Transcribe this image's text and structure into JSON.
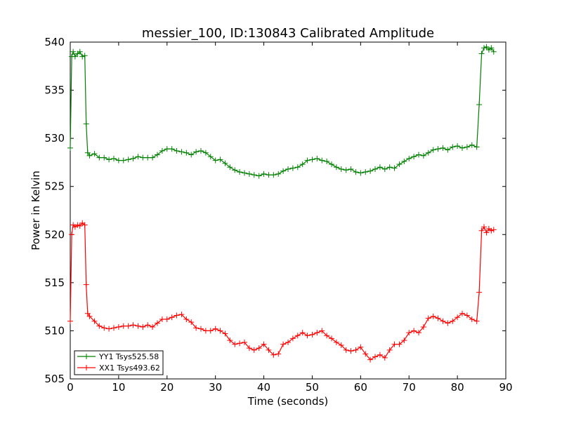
{
  "chart_data": {
    "type": "line",
    "title": "messier_100, ID:130843 Calibrated Amplitude",
    "xlabel": "Time (seconds)",
    "ylabel": "Power in Kelvin",
    "xlim": [
      0,
      90
    ],
    "ylim": [
      505,
      540
    ],
    "x_ticks": [
      0,
      10,
      20,
      30,
      40,
      50,
      60,
      70,
      80,
      90
    ],
    "y_ticks": [
      505,
      510,
      515,
      520,
      525,
      530,
      535,
      540
    ],
    "grid": false,
    "legend_position": "lower-left",
    "marker": "+",
    "series": [
      {
        "name": "YY1 Tsys525.58",
        "color": "#008000",
        "points": [
          [
            0,
            529
          ],
          [
            0.3,
            538.5
          ],
          [
            0.6,
            539
          ],
          [
            1,
            538.5
          ],
          [
            1.5,
            538.8
          ],
          [
            2,
            539
          ],
          [
            2.5,
            538.5
          ],
          [
            3,
            538.6
          ],
          [
            3.3,
            531.5
          ],
          [
            3.6,
            528.5
          ],
          [
            4,
            528.2
          ],
          [
            5,
            528.4
          ],
          [
            6,
            528
          ],
          [
            7,
            528
          ],
          [
            8,
            527.8
          ],
          [
            9,
            527.9
          ],
          [
            10,
            527.7
          ],
          [
            11,
            527.7
          ],
          [
            12,
            527.8
          ],
          [
            13,
            527.9
          ],
          [
            14,
            528.1
          ],
          [
            15,
            528
          ],
          [
            16,
            528
          ],
          [
            17,
            528
          ],
          [
            18,
            528.3
          ],
          [
            19,
            528.7
          ],
          [
            20,
            528.9
          ],
          [
            21,
            528.9
          ],
          [
            22,
            528.7
          ],
          [
            23,
            528.6
          ],
          [
            24,
            528.5
          ],
          [
            25,
            528.3
          ],
          [
            26,
            528.6
          ],
          [
            27,
            528.7
          ],
          [
            28,
            528.5
          ],
          [
            29,
            528.1
          ],
          [
            30,
            527.7
          ],
          [
            31,
            527.8
          ],
          [
            32,
            527.4
          ],
          [
            33,
            527
          ],
          [
            34,
            526.7
          ],
          [
            35,
            526.5
          ],
          [
            36,
            526.4
          ],
          [
            37,
            526.3
          ],
          [
            38,
            526.2
          ],
          [
            39,
            526.1
          ],
          [
            40,
            526.3
          ],
          [
            41,
            526.2
          ],
          [
            42,
            526.2
          ],
          [
            43,
            526.3
          ],
          [
            44,
            526.6
          ],
          [
            45,
            526.8
          ],
          [
            46,
            526.9
          ],
          [
            47,
            527
          ],
          [
            48,
            527.3
          ],
          [
            49,
            527.7
          ],
          [
            50,
            527.8
          ],
          [
            51,
            527.9
          ],
          [
            52,
            527.7
          ],
          [
            53,
            527.6
          ],
          [
            54,
            527.3
          ],
          [
            55,
            527
          ],
          [
            56,
            526.8
          ],
          [
            57,
            526.7
          ],
          [
            58,
            526.8
          ],
          [
            59,
            526.5
          ],
          [
            60,
            526.4
          ],
          [
            61,
            526.5
          ],
          [
            62,
            526.6
          ],
          [
            63,
            526.8
          ],
          [
            64,
            527
          ],
          [
            65,
            526.8
          ],
          [
            66,
            527
          ],
          [
            67,
            526.9
          ],
          [
            68,
            527.3
          ],
          [
            69,
            527.6
          ],
          [
            70,
            527.9
          ],
          [
            71,
            528.1
          ],
          [
            72,
            528.3
          ],
          [
            73,
            528.2
          ],
          [
            74,
            528.5
          ],
          [
            75,
            528.8
          ],
          [
            76,
            528.9
          ],
          [
            77,
            529
          ],
          [
            78,
            528.8
          ],
          [
            79,
            529.1
          ],
          [
            80,
            529.2
          ],
          [
            81,
            529
          ],
          [
            82,
            529.1
          ],
          [
            83,
            529.3
          ],
          [
            84,
            529.1
          ],
          [
            84.5,
            533.5
          ],
          [
            85,
            538.8
          ],
          [
            85.5,
            539.4
          ],
          [
            86,
            539.5
          ],
          [
            86.5,
            539.2
          ],
          [
            87,
            539.4
          ],
          [
            87.5,
            539
          ]
        ]
      },
      {
        "name": "XX1 Tsys493.62",
        "color": "#ff0000",
        "points": [
          [
            0,
            511
          ],
          [
            0.3,
            520
          ],
          [
            0.6,
            521
          ],
          [
            1,
            520.8
          ],
          [
            1.5,
            521
          ],
          [
            2,
            520.9
          ],
          [
            2.5,
            521.2
          ],
          [
            3,
            521
          ],
          [
            3.3,
            514.8
          ],
          [
            3.6,
            511.8
          ],
          [
            4,
            511.5
          ],
          [
            5,
            511
          ],
          [
            6,
            510.5
          ],
          [
            7,
            510.3
          ],
          [
            8,
            510.2
          ],
          [
            9,
            510.3
          ],
          [
            10,
            510.4
          ],
          [
            11,
            510.5
          ],
          [
            12,
            510.5
          ],
          [
            13,
            510.6
          ],
          [
            14,
            510.5
          ],
          [
            15,
            510.4
          ],
          [
            16,
            510.6
          ],
          [
            17,
            510.4
          ],
          [
            18,
            510.8
          ],
          [
            19,
            511.2
          ],
          [
            20,
            511.2
          ],
          [
            21,
            511.4
          ],
          [
            22,
            511.6
          ],
          [
            23,
            511.7
          ],
          [
            24,
            511.2
          ],
          [
            25,
            510.9
          ],
          [
            26,
            510.3
          ],
          [
            27,
            510.2
          ],
          [
            28,
            510
          ],
          [
            29,
            510
          ],
          [
            30,
            510.2
          ],
          [
            31,
            510
          ],
          [
            32,
            509.7
          ],
          [
            33,
            509
          ],
          [
            34,
            508.6
          ],
          [
            35,
            508.7
          ],
          [
            36,
            508.8
          ],
          [
            37,
            508.2
          ],
          [
            38,
            508
          ],
          [
            39,
            508.2
          ],
          [
            40,
            508.6
          ],
          [
            41,
            508
          ],
          [
            42,
            507.5
          ],
          [
            43,
            507.6
          ],
          [
            44,
            508.6
          ],
          [
            45,
            508.8
          ],
          [
            46,
            509.2
          ],
          [
            47,
            509.5
          ],
          [
            48,
            509.8
          ],
          [
            49,
            509.5
          ],
          [
            50,
            509.6
          ],
          [
            51,
            509.8
          ],
          [
            52,
            510
          ],
          [
            53,
            509.5
          ],
          [
            54,
            509.2
          ],
          [
            55,
            508.8
          ],
          [
            56,
            508.5
          ],
          [
            57,
            508
          ],
          [
            58,
            507.9
          ],
          [
            59,
            508
          ],
          [
            60,
            508.3
          ],
          [
            61,
            507.6
          ],
          [
            62,
            507
          ],
          [
            63,
            507.3
          ],
          [
            64,
            507.5
          ],
          [
            65,
            507.2
          ],
          [
            66,
            508
          ],
          [
            67,
            508.6
          ],
          [
            68,
            508.6
          ],
          [
            69,
            509
          ],
          [
            70,
            509.8
          ],
          [
            71,
            510
          ],
          [
            72,
            509.8
          ],
          [
            73,
            510.4
          ],
          [
            74,
            511.3
          ],
          [
            75,
            511.5
          ],
          [
            76,
            511.3
          ],
          [
            77,
            511
          ],
          [
            78,
            510.8
          ],
          [
            79,
            511
          ],
          [
            80,
            511.4
          ],
          [
            81,
            511.8
          ],
          [
            82,
            511.6
          ],
          [
            83,
            511.2
          ],
          [
            84,
            511
          ],
          [
            84.5,
            514
          ],
          [
            85,
            520.4
          ],
          [
            85.5,
            520.8
          ],
          [
            86,
            520.2
          ],
          [
            86.5,
            520.6
          ],
          [
            87,
            520.4
          ],
          [
            87.5,
            520.5
          ]
        ]
      }
    ]
  }
}
